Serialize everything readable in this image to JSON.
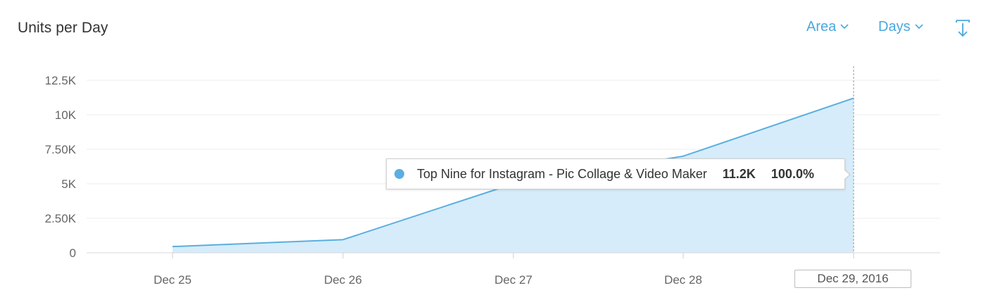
{
  "header": {
    "title": "Units per Day",
    "chart_type_label": "Area",
    "interval_label": "Days"
  },
  "icons": {
    "chart_type_dropdown": "chevron-down-icon",
    "interval_dropdown": "chevron-down-icon",
    "download": "download-icon"
  },
  "colors": {
    "accent": "#4aa8dc",
    "series_line": "#5aaee0",
    "series_fill": "#d6ecfa"
  },
  "tooltip": {
    "series_name": "Top Nine for Instagram - Pic Collage & Video Maker",
    "value": "11.2K",
    "percent": "100.0%"
  },
  "chart_data": {
    "type": "area",
    "title": "Units per Day",
    "x": [
      "Dec 25",
      "Dec 26",
      "Dec 27",
      "Dec 28",
      "Dec 29, 2016"
    ],
    "x_tick_labels": [
      "Dec 25",
      "Dec 26",
      "Dec 27",
      "Dec 28",
      "Dec 29, 2016"
    ],
    "y_tick_values": [
      0,
      2500,
      5000,
      7500,
      10000,
      12500
    ],
    "y_tick_labels": [
      "0",
      "2.50K",
      "5K",
      "7.50K",
      "10K",
      "12.5K"
    ],
    "ylim": [
      0,
      12500
    ],
    "grid": true,
    "series": [
      {
        "name": "Top Nine for Instagram - Pic Collage & Video Maker",
        "values": [
          450,
          950,
          5000,
          7000,
          11200
        ]
      }
    ],
    "highlighted_index": 4
  }
}
